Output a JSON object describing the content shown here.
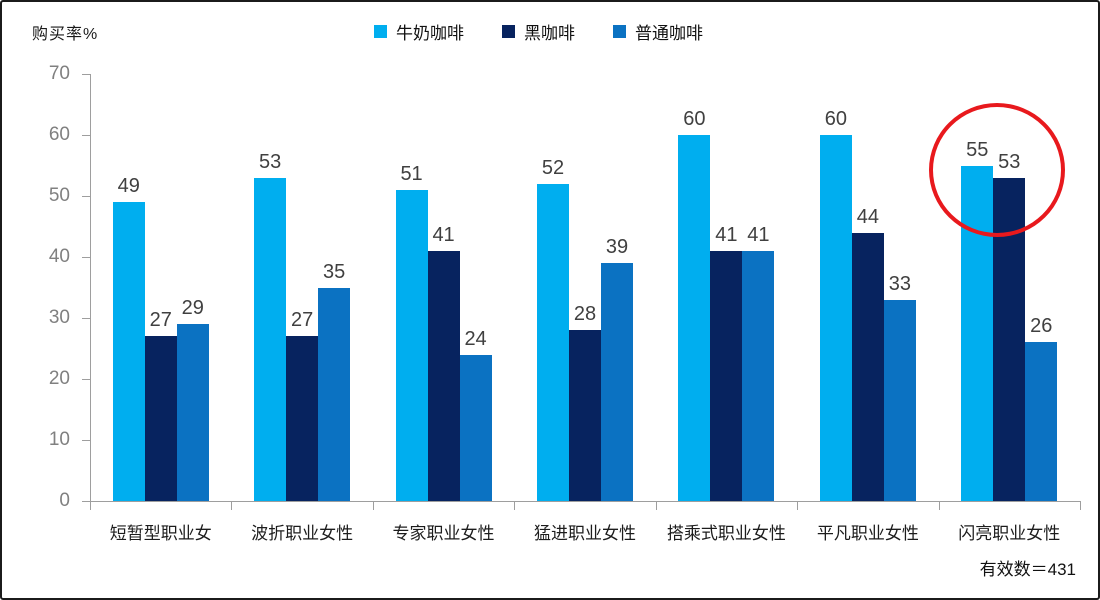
{
  "chart_data": {
    "type": "bar",
    "title": "",
    "ylabel": "购买率%",
    "categories": [
      "短暂型职业女",
      "波折职业女性",
      "专家职业女性",
      "猛进职业女性",
      "搭乘式职业女性",
      "平凡职业女性",
      "闪亮职业女性"
    ],
    "series": [
      {
        "name": "牛奶咖啡",
        "color": "#00AEEF",
        "values": [
          49,
          53,
          51,
          52,
          60,
          60,
          55
        ]
      },
      {
        "name": "黑咖啡",
        "color": "#07235F",
        "values": [
          27,
          27,
          41,
          28,
          41,
          44,
          53
        ]
      },
      {
        "name": "普通咖啡",
        "color": "#0B72C2",
        "values": [
          29,
          35,
          24,
          39,
          41,
          33,
          26
        ]
      }
    ],
    "ylim": [
      0,
      70
    ],
    "yticks": [
      0,
      10,
      20,
      30,
      40,
      50,
      60,
      70
    ],
    "grid": false,
    "legend_position": "top-center",
    "annotation": {
      "shape": "circle",
      "color": "#E8191D",
      "target_category": "闪亮职业女性",
      "target_values": [
        55,
        53
      ]
    }
  },
  "footer": {
    "note": "有效数＝431"
  },
  "ui_colors": {
    "axis": "#9e9e9e",
    "tick_label": "#808080",
    "value_label": "#404040",
    "category_label": "#1c1c1c",
    "border": "#1b1b1b",
    "background": "#ffffff"
  }
}
